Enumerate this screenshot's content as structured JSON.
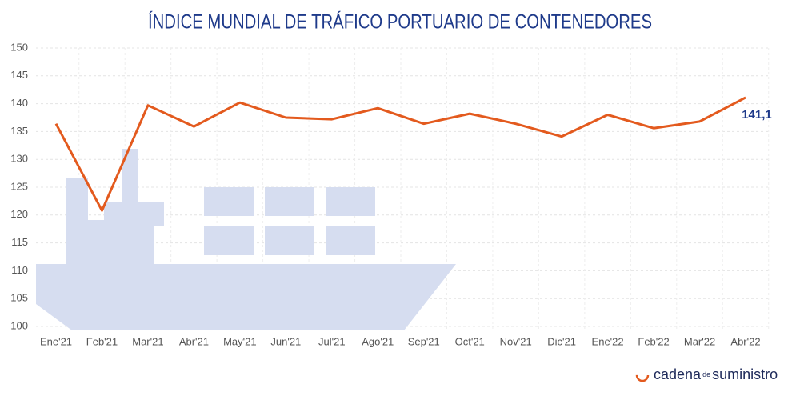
{
  "chart_data": {
    "type": "line",
    "title": "ÍNDICE MUNDIAL DE TRÁFICO PORTUARIO DE CONTENEDORES",
    "categories": [
      "Ene'21",
      "Feb'21",
      "Mar'21",
      "Abr'21",
      "May'21",
      "Jun'21",
      "Jul'21",
      "Ago'21",
      "Sep'21",
      "Oct'21",
      "Nov'21",
      "Dic'21",
      "Ene'22",
      "Feb'22",
      "Mar'22",
      "Abr'22"
    ],
    "series": [
      {
        "color": "#e35a1e",
        "values": [
          136.4,
          120.8,
          139.7,
          135.9,
          140.2,
          137.5,
          137.2,
          139.2,
          136.4,
          138.2,
          136.4,
          134.1,
          138.0,
          135.6,
          136.8,
          141.1
        ],
        "value_labels": [
          null,
          null,
          null,
          null,
          null,
          null,
          null,
          null,
          null,
          null,
          null,
          null,
          null,
          null,
          null,
          "141,1"
        ]
      }
    ],
    "ylim": [
      100,
      150
    ],
    "yticks": [
      100,
      105,
      110,
      115,
      120,
      125,
      130,
      135,
      140,
      145,
      150
    ],
    "grid": true
  },
  "logo": {
    "name": "cadena",
    "joiner": "de",
    "end": "suministro"
  }
}
